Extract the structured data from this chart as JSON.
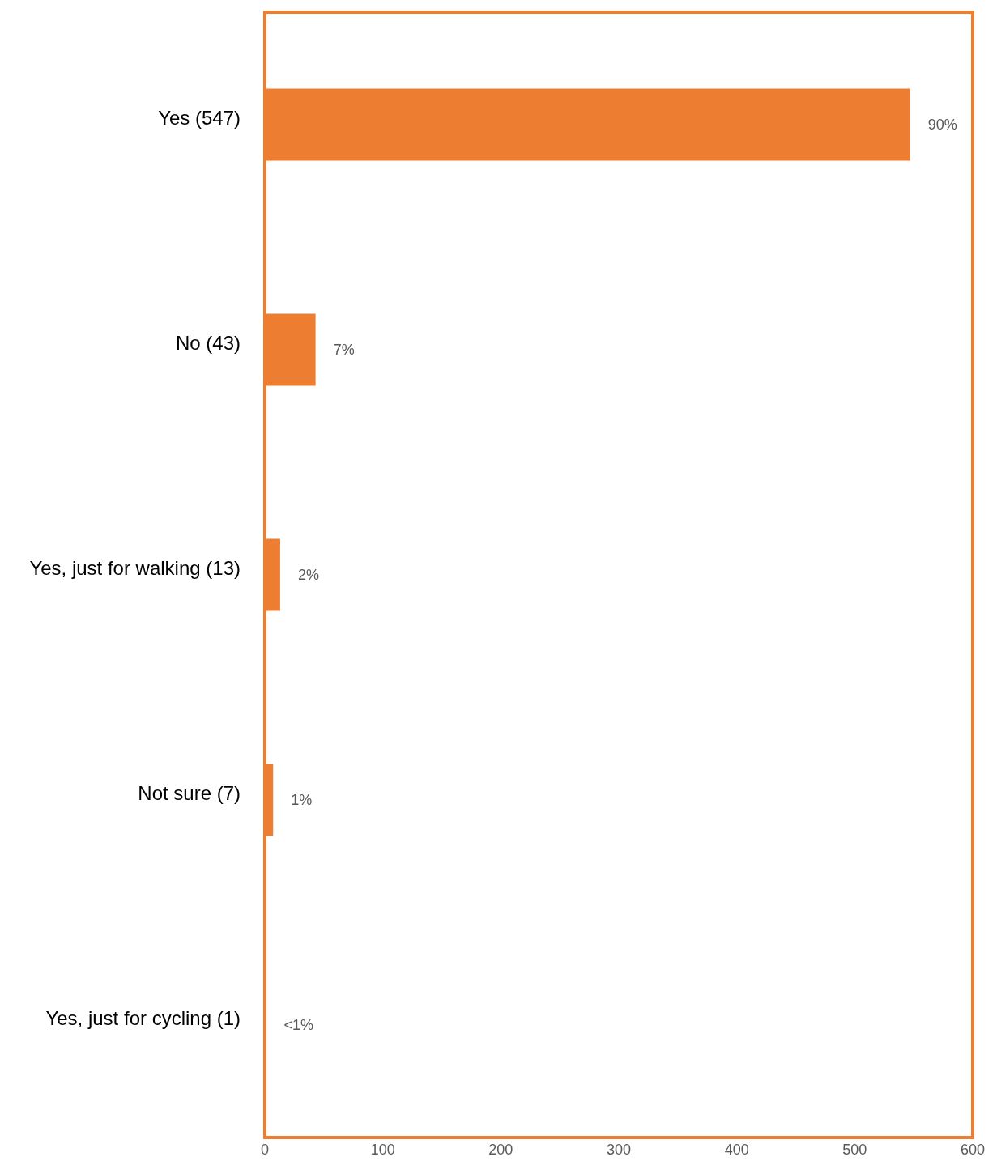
{
  "chart_data": {
    "type": "bar",
    "orientation": "horizontal",
    "categories": [
      "Yes (547)",
      "No (43)",
      "Yes, just for walking (13)",
      "Not sure (7)",
      "Yes, just for cycling (1)"
    ],
    "values": [
      547,
      43,
      13,
      7,
      1
    ],
    "color": "#ed7d31",
    "xlim": [
      0,
      600
    ],
    "xticks": [
      0,
      100,
      200,
      300,
      400,
      500,
      600
    ],
    "annotations": [
      {
        "text": "90%",
        "x": 547,
        "y": "Yes (547)"
      },
      {
        "text": "7%",
        "x": 43,
        "y": "No (43)"
      },
      {
        "text": "2%",
        "x": 13,
        "y": "Yes, just for walking (13)"
      },
      {
        "text": "1%",
        "x": 7,
        "y": "Not sure (7)"
      },
      {
        "text": "<1%",
        "x": 1,
        "y": "Yes, just for cycling (1)"
      }
    ]
  }
}
